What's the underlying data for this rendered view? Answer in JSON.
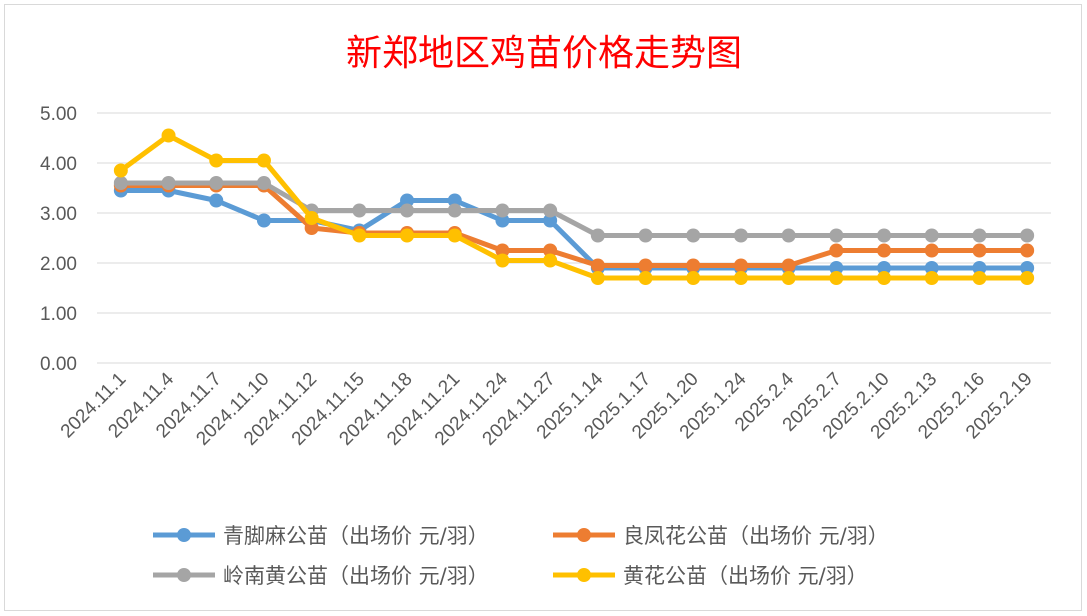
{
  "chart_data": {
    "type": "line",
    "title": "新郑地区鸡苗价格走势图",
    "title_color": "#ff0000",
    "categories": [
      "2024.11.1",
      "2024.11.4",
      "2024.11.7",
      "2024.11.10",
      "2024.11.12",
      "2024.11.15",
      "2024.11.18",
      "2024.11.21",
      "2024.11.24",
      "2024.11.27",
      "2025.1.14",
      "2025.1.17",
      "2025.1.20",
      "2025.1.24",
      "2025.2.4",
      "2025.2.7",
      "2025.2.10",
      "2025.2.13",
      "2025.2.16",
      "2025.2.19"
    ],
    "ylim": [
      0,
      5
    ],
    "yticks": [
      "0.00",
      "1.00",
      "2.00",
      "3.00",
      "4.00",
      "5.00"
    ],
    "grid": true,
    "legend_position": "bottom",
    "series": [
      {
        "name": "青脚麻公苗（出场价 元/羽）",
        "color": "#5b9bd5",
        "values": [
          3.45,
          3.45,
          3.25,
          2.85,
          2.85,
          2.65,
          3.25,
          3.25,
          2.85,
          2.85,
          1.9,
          1.9,
          1.9,
          1.9,
          1.9,
          1.9,
          1.9,
          1.9,
          1.9,
          1.9
        ]
      },
      {
        "name": "良凤花公苗（出场价 元/羽）",
        "color": "#ed7d31",
        "values": [
          3.55,
          3.55,
          3.55,
          3.55,
          2.7,
          2.6,
          2.6,
          2.6,
          2.25,
          2.25,
          1.95,
          1.95,
          1.95,
          1.95,
          1.95,
          2.25,
          2.25,
          2.25,
          2.25,
          2.25
        ]
      },
      {
        "name": "岭南黄公苗（出场价 元/羽）",
        "color": "#a5a5a5",
        "values": [
          3.6,
          3.6,
          3.6,
          3.6,
          3.05,
          3.05,
          3.05,
          3.05,
          3.05,
          3.05,
          2.55,
          2.55,
          2.55,
          2.55,
          2.55,
          2.55,
          2.55,
          2.55,
          2.55,
          2.55
        ]
      },
      {
        "name": "黄花公苗（出场价 元/羽）",
        "color": "#ffc000",
        "values": [
          3.85,
          4.55,
          4.05,
          4.05,
          2.9,
          2.55,
          2.55,
          2.55,
          2.05,
          2.05,
          1.7,
          1.7,
          1.7,
          1.7,
          1.7,
          1.7,
          1.7,
          1.7,
          1.7,
          1.7
        ]
      }
    ]
  }
}
